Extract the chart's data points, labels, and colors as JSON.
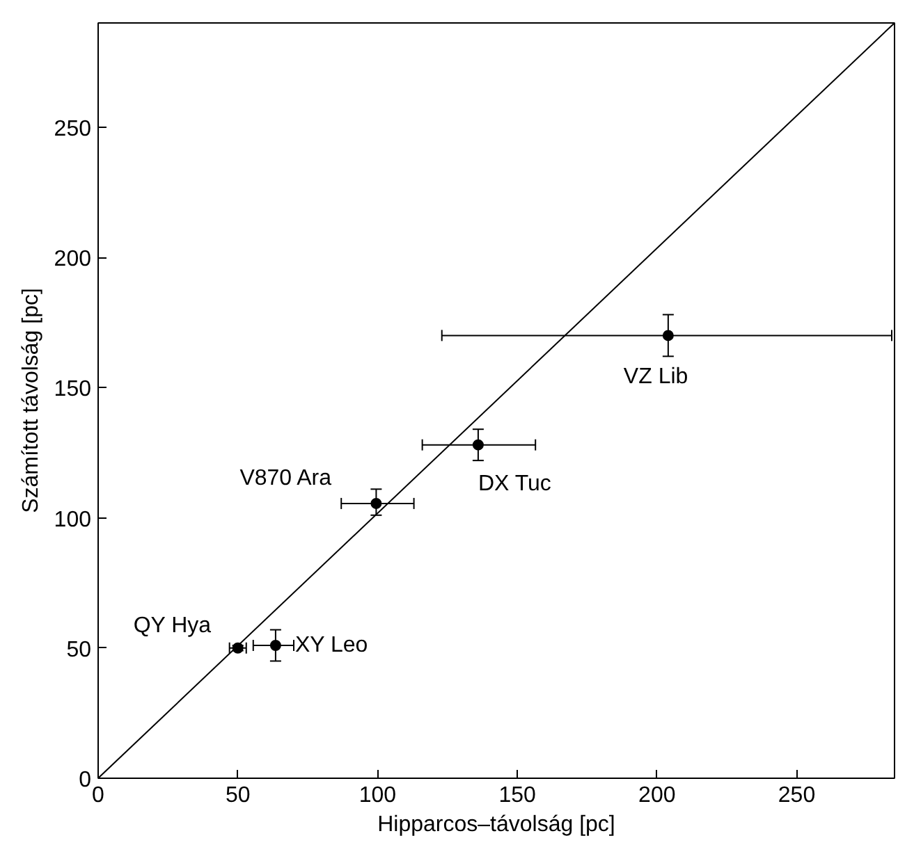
{
  "chart_data": {
    "type": "scatter",
    "xlabel": "Hipparcos–távolság [pc]",
    "ylabel": "Számított távolság [pc]",
    "xlim": [
      0,
      285
    ],
    "ylim": [
      0,
      290
    ],
    "xticks": [
      0,
      50,
      100,
      150,
      200,
      250
    ],
    "yticks": [
      0,
      50,
      100,
      150,
      200,
      250
    ],
    "marker": "circle",
    "series": [
      {
        "color": "#000000",
        "x": [
          50,
          63.5,
          99.5,
          136,
          204
        ],
        "values": [
          50,
          51,
          105.5,
          128,
          170
        ],
        "errors": [
          1,
          [
            45,
            57
          ],
          [
            101,
            111
          ],
          [
            122,
            134
          ],
          [
            162,
            178
          ]
        ],
        "xerrors": [
          [
            47,
            53
          ],
          [
            55.5,
            70
          ],
          [
            87,
            113
          ],
          [
            116,
            156.5
          ],
          [
            123,
            284
          ]
        ]
      },
      {
        "type": "line",
        "color": "#000000",
        "x": [
          0,
          285
        ],
        "values": [
          0,
          290
        ],
        "line_style": "solid",
        "marker": "none"
      }
    ],
    "annotations": [
      {
        "text": "QY Hya",
        "x": 50,
        "y": 50
      },
      {
        "text": "XY Leo",
        "x": 63.5,
        "y": 51
      },
      {
        "text": "V870 Ara",
        "x": 99.5,
        "y": 105.5
      },
      {
        "text": "DX Tuc",
        "x": 136,
        "y": 128
      },
      {
        "text": "VZ Lib",
        "x": 204,
        "y": 170
      }
    ]
  }
}
